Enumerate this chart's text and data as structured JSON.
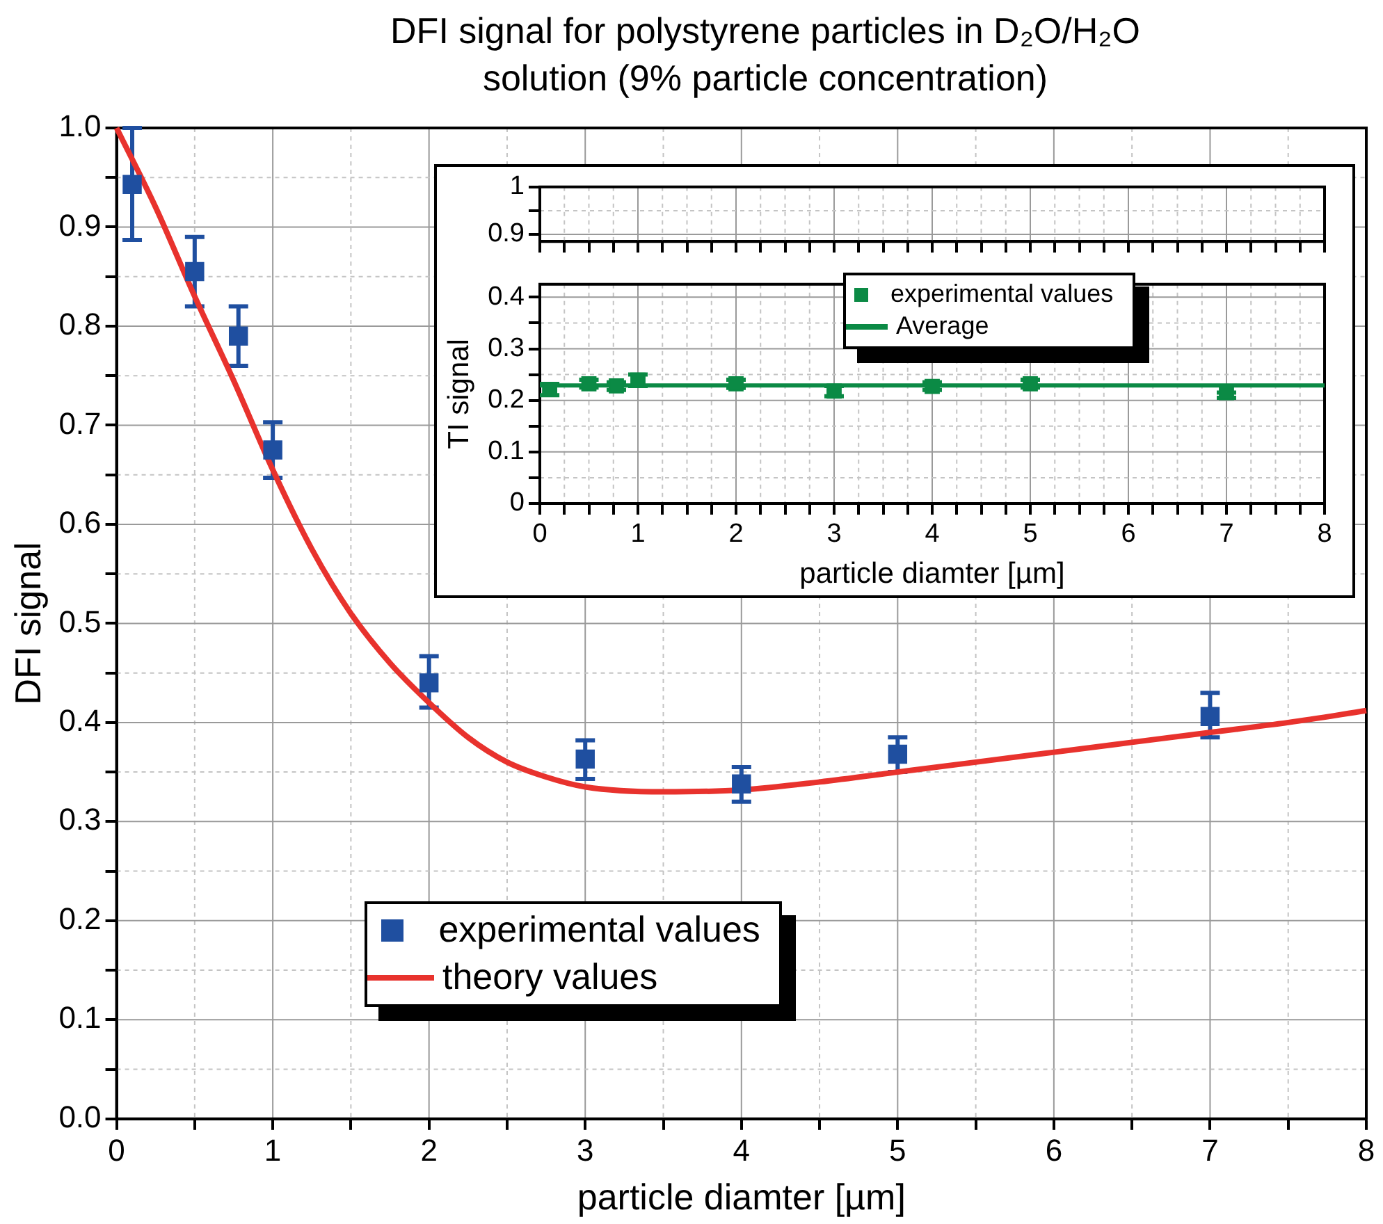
{
  "chart_data": [
    {
      "type": "scatter",
      "title": "DFI signal for polystyrene particles in D₂O/H₂O solution (9% particle concentration)",
      "xlabel": "particle diamter [µm]",
      "ylabel": "DFI signal",
      "series": [
        {
          "name": "experimental values",
          "type": "scatter",
          "color": "#1f4fa0",
          "marker": "square",
          "x": [
            0.1,
            0.5,
            0.78,
            1,
            2,
            3,
            4,
            5,
            7
          ],
          "values": [
            0.943,
            0.855,
            0.79,
            0.675,
            0.44,
            0.363,
            0.338,
            0.368,
            0.406
          ],
          "errors": [
            [
              0.887,
              1.0
            ],
            [
              0.82,
              0.89
            ],
            [
              0.76,
              0.82
            ],
            [
              0.647,
              0.703
            ],
            [
              0.415,
              0.467
            ],
            [
              0.343,
              0.382
            ],
            [
              0.32,
              0.355
            ],
            [
              0.35,
              0.385
            ],
            [
              0.385,
              0.43
            ]
          ]
        },
        {
          "name": "theory values",
          "type": "line",
          "color": "#e8322d",
          "marker": "none",
          "line_style": "solid",
          "x": [
            0,
            0.25,
            0.5,
            0.75,
            1,
            1.25,
            1.5,
            1.75,
            2,
            2.25,
            2.5,
            2.75,
            3,
            3.5,
            4,
            4.5,
            5,
            5.5,
            6,
            6.5,
            7,
            7.5,
            8
          ],
          "values": [
            1.0,
            0.92,
            0.83,
            0.745,
            0.655,
            0.575,
            0.51,
            0.46,
            0.42,
            0.385,
            0.36,
            0.345,
            0.335,
            0.33,
            0.332,
            0.34,
            0.35,
            0.36,
            0.37,
            0.38,
            0.39,
            0.4,
            0.412
          ]
        }
      ],
      "xlim": [
        0,
        8
      ],
      "xticks": [
        0,
        {
          "value": 0.5,
          "label": null
        },
        1,
        {
          "value": 1.5,
          "label": null
        },
        2,
        {
          "value": 2.5,
          "label": null
        },
        3,
        {
          "value": 3.5,
          "label": null
        },
        4,
        {
          "value": 4.5,
          "label": null
        },
        5,
        {
          "value": 5.5,
          "label": null
        },
        6,
        {
          "value": 6.5,
          "label": null
        },
        7,
        {
          "value": 7.5,
          "label": null
        },
        8
      ],
      "ylim": [
        0,
        1
      ],
      "yticks": [
        {
          "value": 0,
          "label": "0.0"
        },
        {
          "value": 0.05,
          "label": null
        },
        0.1,
        {
          "value": 0.15,
          "label": null
        },
        0.2,
        {
          "value": 0.25,
          "label": null
        },
        0.3,
        {
          "value": 0.35,
          "label": null
        },
        0.4,
        {
          "value": 0.45,
          "label": null
        },
        0.5,
        {
          "value": 0.55,
          "label": null
        },
        0.6,
        {
          "value": 0.65,
          "label": null
        },
        0.7,
        {
          "value": 0.75,
          "label": null
        },
        0.8,
        {
          "value": 0.85,
          "label": null
        },
        0.9,
        {
          "value": 0.95,
          "label": null
        },
        {
          "value": 1,
          "label": "1.0"
        }
      ],
      "grid": true,
      "legend": "bottom"
    },
    {
      "type": "scatter",
      "xlim": [
        0,
        8
      ],
      "xticks": [
        0,
        {
          "value": 0.25,
          "label": null
        },
        {
          "value": 0.5,
          "label": null
        },
        {
          "value": 0.75,
          "label": null
        },
        1,
        {
          "value": 1.25,
          "label": null
        },
        {
          "value": 1.5,
          "label": null
        },
        {
          "value": 1.75,
          "label": null
        },
        2,
        {
          "value": 2.25,
          "label": null
        },
        {
          "value": 2.5,
          "label": null
        },
        {
          "value": 2.75,
          "label": null
        },
        3,
        {
          "value": 3.25,
          "label": null
        },
        {
          "value": 3.5,
          "label": null
        },
        {
          "value": 3.75,
          "label": null
        },
        4,
        {
          "value": 4.25,
          "label": null
        },
        {
          "value": 4.5,
          "label": null
        },
        {
          "value": 4.75,
          "label": null
        },
        5,
        {
          "value": 5.25,
          "label": null
        },
        {
          "value": 5.5,
          "label": null
        },
        {
          "value": 5.75,
          "label": null
        },
        6,
        {
          "value": 6.25,
          "label": null
        },
        {
          "value": 6.5,
          "label": null
        },
        {
          "value": 6.75,
          "label": null
        },
        7,
        {
          "value": 7.25,
          "label": null
        },
        {
          "value": 7.5,
          "label": null
        },
        {
          "value": 7.75,
          "label": null
        },
        8
      ],
      "ylim": [
        0.885,
        1
      ],
      "yticks": [
        0.9,
        {
          "value": 0.95,
          "label": null
        },
        1
      ],
      "grid": true,
      "tick_labels": "y"
    },
    {
      "type": "scatter",
      "xlabel": "particle diamter [µm]",
      "ylabel": "TI signal",
      "series": [
        {
          "name": "experimental values",
          "type": "scatter",
          "color": "#0b8a45",
          "marker": "square",
          "x": [
            0.1,
            0.5,
            0.78,
            1,
            2,
            3,
            4,
            5,
            7
          ],
          "values": [
            0.221,
            0.232,
            0.228,
            0.239,
            0.232,
            0.218,
            0.227,
            0.232,
            0.215
          ],
          "errors": [
            [
              0.21,
              0.232
            ],
            [
              0.225,
              0.24
            ],
            [
              0.22,
              0.235
            ],
            [
              0.228,
              0.25
            ],
            [
              0.224,
              0.24
            ],
            [
              0.208,
              0.228
            ],
            [
              0.22,
              0.235
            ],
            [
              0.225,
              0.24
            ],
            [
              0.205,
              0.215
            ]
          ]
        },
        {
          "name": "Average",
          "type": "line",
          "color": "#0b8a45",
          "marker": "none",
          "line_style": "solid",
          "x": [
            0,
            8
          ],
          "values": [
            0.229,
            0.229
          ]
        }
      ],
      "xlim": [
        0,
        8
      ],
      "xticks": [
        0,
        {
          "value": 0.25,
          "label": null
        },
        {
          "value": 0.5,
          "label": null
        },
        {
          "value": 0.75,
          "label": null
        },
        1,
        {
          "value": 1.25,
          "label": null
        },
        {
          "value": 1.5,
          "label": null
        },
        {
          "value": 1.75,
          "label": null
        },
        2,
        {
          "value": 2.25,
          "label": null
        },
        {
          "value": 2.5,
          "label": null
        },
        {
          "value": 2.75,
          "label": null
        },
        3,
        {
          "value": 3.25,
          "label": null
        },
        {
          "value": 3.5,
          "label": null
        },
        {
          "value": 3.75,
          "label": null
        },
        4,
        {
          "value": 4.25,
          "label": null
        },
        {
          "value": 4.5,
          "label": null
        },
        {
          "value": 4.75,
          "label": null
        },
        5,
        {
          "value": 5.25,
          "label": null
        },
        {
          "value": 5.5,
          "label": null
        },
        {
          "value": 5.75,
          "label": null
        },
        6,
        {
          "value": 6.25,
          "label": null
        },
        {
          "value": 6.5,
          "label": null
        },
        {
          "value": 6.75,
          "label": null
        },
        7,
        {
          "value": 7.25,
          "label": null
        },
        {
          "value": 7.5,
          "label": null
        },
        {
          "value": 7.75,
          "label": null
        },
        8
      ],
      "ylim": [
        0,
        0.425
      ],
      "yticks": [
        0,
        {
          "value": 0.05,
          "label": null
        },
        0.1,
        {
          "value": 0.15,
          "label": null
        },
        0.2,
        {
          "value": 0.25,
          "label": null
        },
        0.3,
        {
          "value": 0.35,
          "label": null
        },
        0.4
      ],
      "grid": true,
      "legend": "top"
    }
  ]
}
